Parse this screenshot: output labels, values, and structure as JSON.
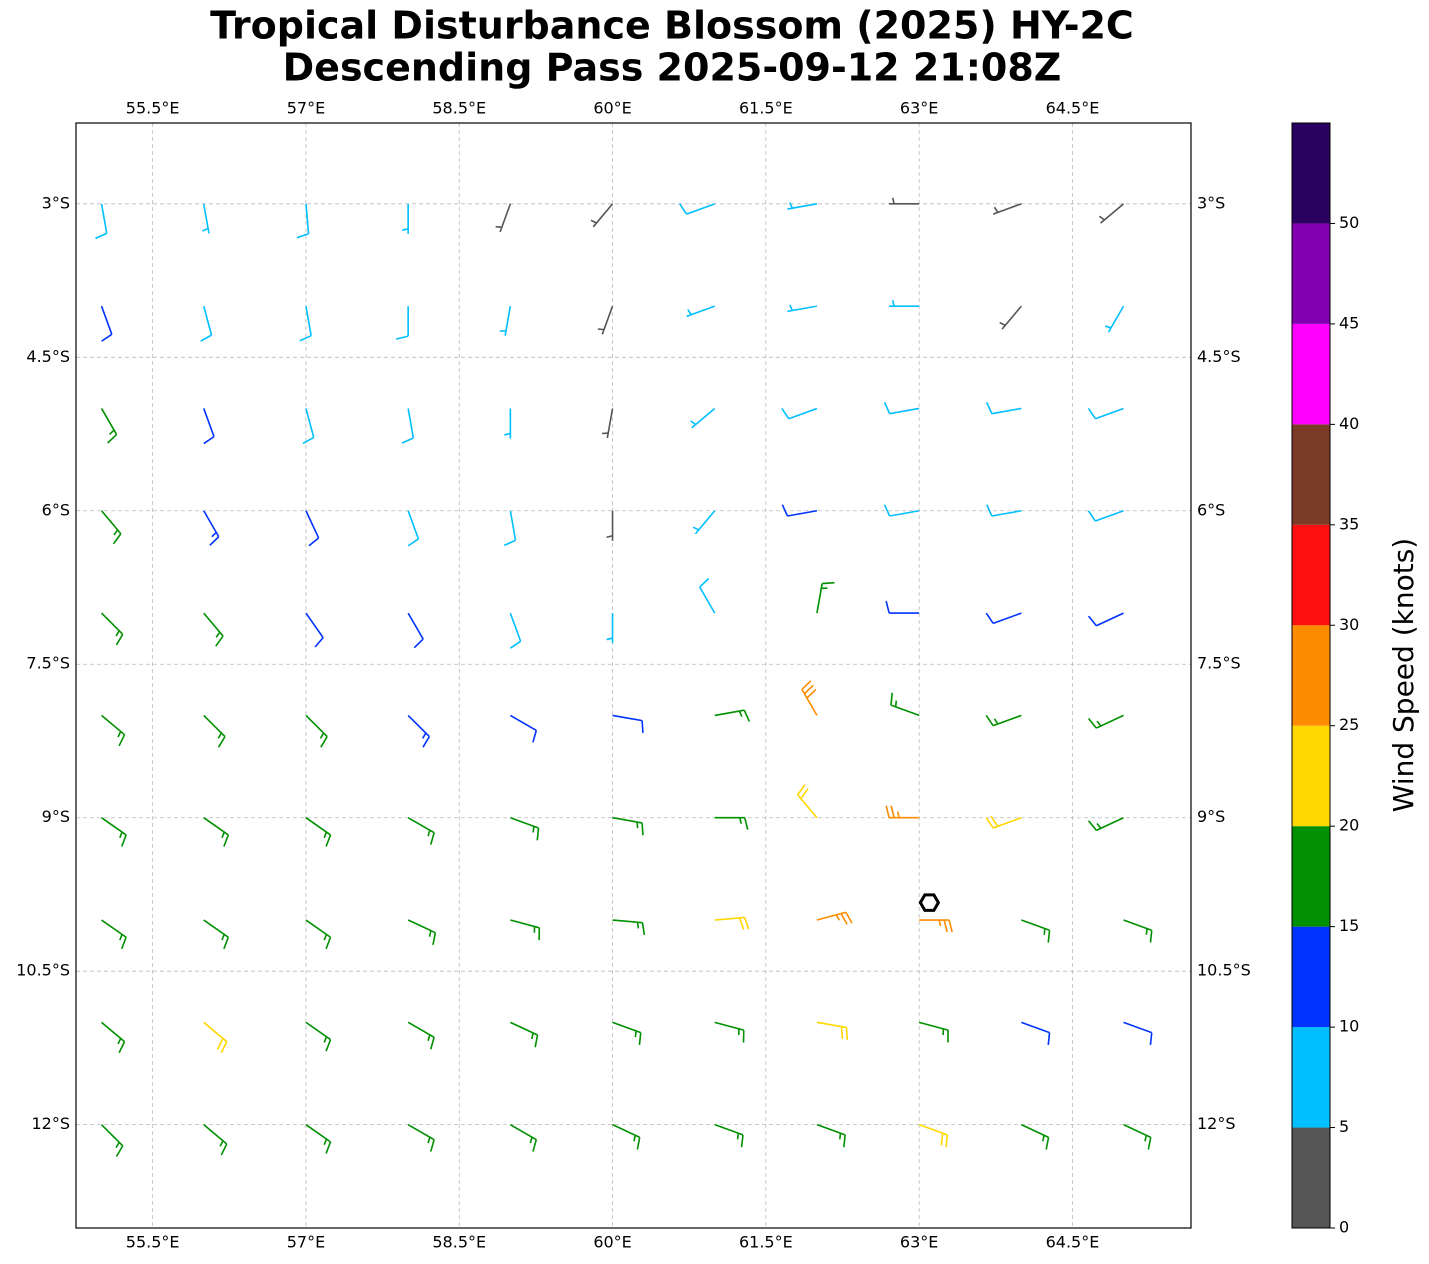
{
  "chart_data": {
    "type": "barbs",
    "title": "Tropical Disturbance Blossom (2025) HY-2C",
    "subtitle": "Descending Pass 2025-09-12 21:08Z",
    "xlim": [
      54.75,
      65.66
    ],
    "ylim": [
      -13.01,
      -2.21
    ],
    "xticks": [
      {
        "value": 55.5,
        "label": "55.5°E"
      },
      {
        "value": 57,
        "label": "57°E"
      },
      {
        "value": 58.5,
        "label": "58.5°E"
      },
      {
        "value": 60,
        "label": "60°E"
      },
      {
        "value": 61.5,
        "label": "61.5°E"
      },
      {
        "value": 63,
        "label": "63°E"
      },
      {
        "value": 64.5,
        "label": "64.5°E"
      }
    ],
    "yticks": [
      {
        "value": -3,
        "label": "3°S"
      },
      {
        "value": -4.5,
        "label": "4.5°S"
      },
      {
        "value": -6,
        "label": "6°S"
      },
      {
        "value": -7.5,
        "label": "7.5°S"
      },
      {
        "value": -9,
        "label": "9°S"
      },
      {
        "value": -10.5,
        "label": "10.5°S"
      },
      {
        "value": -12,
        "label": "12°S"
      }
    ],
    "grid": true,
    "lons": [
      55,
      56,
      57,
      58,
      59,
      60,
      61,
      62,
      63,
      64,
      65
    ],
    "rows": [
      {
        "lat": -3,
        "speed": [
          8,
          7,
          8,
          7,
          3,
          3,
          8,
          7,
          3,
          3,
          3
        ],
        "direction": [
          170,
          170,
          175,
          180,
          200,
          220,
          250,
          260,
          270,
          250,
          230
        ]
      },
      {
        "lat": -4,
        "speed": [
          12,
          8,
          8,
          8,
          7,
          3,
          7,
          7,
          7,
          3,
          7
        ],
        "direction": [
          160,
          165,
          170,
          180,
          190,
          200,
          250,
          260,
          270,
          220,
          210
        ]
      },
      {
        "lat": -5,
        "speed": [
          17,
          12,
          8,
          8,
          7,
          3,
          7,
          8,
          8,
          8,
          8
        ],
        "direction": [
          150,
          160,
          165,
          170,
          180,
          190,
          230,
          250,
          260,
          260,
          250
        ]
      },
      {
        "lat": -6,
        "speed": [
          17,
          13,
          12,
          8,
          8,
          4,
          7,
          12,
          8,
          8,
          9
        ],
        "direction": [
          140,
          150,
          155,
          160,
          170,
          180,
          220,
          260,
          260,
          260,
          250
        ]
      },
      {
        "lat": -7,
        "speed": [
          17,
          17,
          12,
          12,
          8,
          7,
          8,
          17,
          12,
          12,
          12
        ],
        "direction": [
          135,
          140,
          145,
          150,
          160,
          180,
          330,
          10,
          270,
          250,
          245
        ]
      },
      {
        "lat": -8,
        "speed": [
          17,
          17,
          17,
          13,
          12,
          12,
          17,
          28,
          17,
          17,
          17
        ],
        "direction": [
          130,
          135,
          135,
          135,
          120,
          100,
          80,
          330,
          290,
          250,
          245
        ]
      },
      {
        "lat": -9,
        "speed": [
          17,
          17,
          17,
          17,
          17,
          17,
          17,
          22,
          27,
          22,
          17
        ],
        "direction": [
          125,
          125,
          125,
          120,
          110,
          100,
          90,
          320,
          270,
          250,
          245
        ]
      },
      {
        "lat": -10,
        "speed": [
          17,
          17,
          17,
          17,
          17,
          17,
          22,
          27,
          27,
          17,
          17
        ],
        "direction": [
          125,
          125,
          125,
          115,
          105,
          95,
          85,
          75,
          90,
          110,
          110
        ]
      },
      {
        "lat": -11,
        "speed": [
          17,
          22,
          17,
          17,
          17,
          17,
          17,
          22,
          17,
          12,
          12
        ],
        "direction": [
          130,
          130,
          125,
          120,
          115,
          110,
          105,
          100,
          105,
          110,
          110
        ]
      },
      {
        "lat": -12,
        "speed": [
          17,
          17,
          17,
          17,
          17,
          17,
          17,
          17,
          22,
          17,
          17
        ],
        "direction": [
          135,
          130,
          125,
          120,
          120,
          115,
          110,
          110,
          110,
          115,
          115
        ]
      }
    ],
    "center": {
      "lon": 63.1,
      "lat": -9.83
    },
    "colorbar": {
      "label": "Wind Speed (knots)",
      "bounds": [
        0,
        5,
        10,
        15,
        20,
        25,
        30,
        35,
        40,
        45,
        50,
        55
      ],
      "colors": [
        "#555555",
        "#00bfff",
        "#0033ff",
        "#009000",
        "#ffd700",
        "#ff8c00",
        "#ff1010",
        "#7b3b26",
        "#ff00ff",
        "#8000b0",
        "#2a0060"
      ],
      "ticks": [
        0,
        5,
        10,
        15,
        20,
        25,
        30,
        35,
        40,
        45,
        50
      ]
    }
  }
}
